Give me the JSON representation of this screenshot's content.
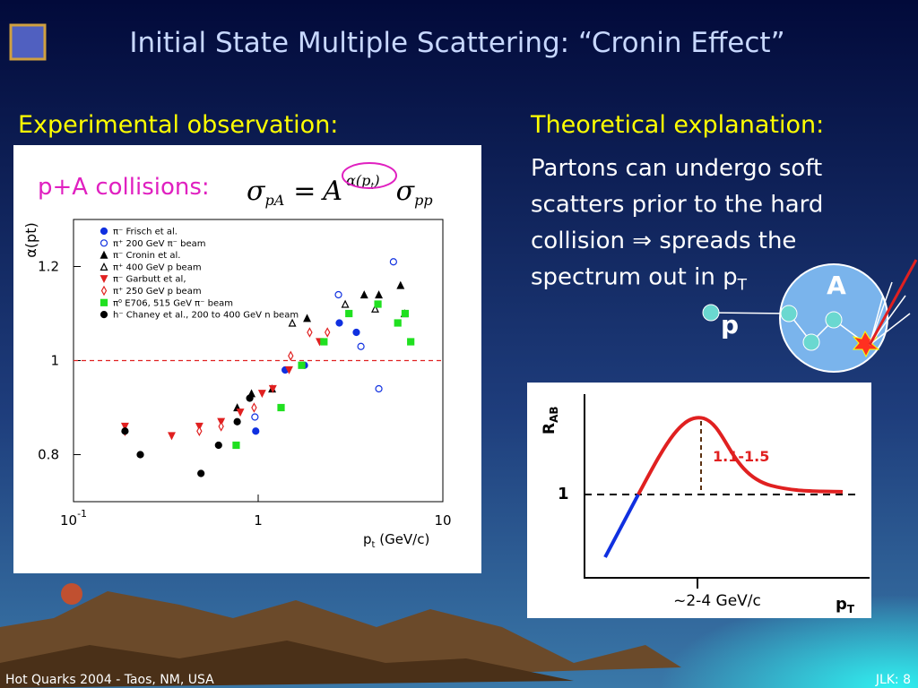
{
  "title": "Initial State Multiple Scattering: “Cronin Effect”",
  "left_heading": "Experimental observation:",
  "right_heading": "Theoretical explanation:",
  "formula": {
    "label": "p+A collisions:",
    "lhs": "σ",
    "lhs_sub": "pA",
    "eq": "=",
    "base": "A",
    "exp_open": "α(",
    "exp_p": "p",
    "exp_sub": "t",
    "exp_close": ")",
    "rhs": "σ",
    "rhs_sub": "pp"
  },
  "explanation": {
    "lines": [
      "Partons can undergo soft",
      "scatters prior to the hard",
      "collision ⇒ spreads the",
      "spectrum out in p"
    ],
    "last_sub": "T"
  },
  "diagram": {
    "nucleus_label": "A",
    "projectile_label": "p"
  },
  "schematic": {
    "ylabel": "R",
    "ylabel_sub": "AB",
    "xlabel": "p",
    "xlabel_sub": "T",
    "one_label": "1",
    "x_label": "~2-4 GeV/c",
    "annotation": "1.1-1.5"
  },
  "footer": {
    "left": "Hot Quarks 2004 - Taos, NM, USA",
    "right": "JLK: 8"
  },
  "chart_data": {
    "type": "scatter",
    "xlog": true,
    "ylabel": "α(pt)",
    "xlabel": "p",
    "xlabel_sub": "t",
    "xlabel_rest": " (GeV/c)",
    "xlim": [
      0.1,
      10
    ],
    "ylim": [
      0.7,
      1.3
    ],
    "xticks": [
      {
        "value": 0.1,
        "label": "10",
        "superscript": "-1"
      },
      1,
      10
    ],
    "yticks": [
      0.8,
      1,
      1.2
    ],
    "reference_line": 1,
    "reference_color": "#e02020",
    "series": [
      {
        "name": "π⁻ Frisch et al.",
        "color": "#1030e0",
        "marker": "circle",
        "x": [
          0.97,
          1.4,
          1.78,
          2.75,
          3.4
        ],
        "values": [
          0.85,
          0.98,
          0.99,
          1.08,
          1.06
        ]
      },
      {
        "name": "π⁺      200 GeV π⁻ beam",
        "color": "#1030e0",
        "marker": "open-circle",
        "x": [
          0.96,
          2.72,
          3.6,
          4.5,
          5.4
        ],
        "values": [
          0.88,
          1.14,
          1.03,
          0.94,
          1.21
        ]
      },
      {
        "name": "π⁻ Cronin et al.",
        "color": "#000000",
        "marker": "triangle",
        "x": [
          0.77,
          0.92,
          1.19,
          1.84,
          3.75,
          4.5,
          5.9
        ],
        "values": [
          0.9,
          0.93,
          0.94,
          1.09,
          1.14,
          1.14,
          1.16
        ]
      },
      {
        "name": "π⁺      400 GeV p beam",
        "color": "#000000",
        "marker": "open-triangle",
        "x": [
          1.53,
          2.96,
          4.3,
          6.2
        ],
        "values": [
          1.08,
          1.12,
          1.11,
          1.1
        ]
      },
      {
        "name": "π⁻ Garbutt et al,",
        "color": "#e02020",
        "marker": "down-triangle",
        "x": [
          0.19,
          0.34,
          0.48,
          0.63,
          0.8,
          1.05,
          1.2,
          1.47,
          2.15
        ],
        "values": [
          0.86,
          0.84,
          0.86,
          0.87,
          0.89,
          0.93,
          0.94,
          0.98,
          1.04
        ]
      },
      {
        "name": "π⁺      250 GeV p beam",
        "color": "#e02020",
        "marker": "open-diamond",
        "x": [
          0.19,
          0.48,
          0.63,
          0.95,
          1.5,
          1.9,
          2.37
        ],
        "values": [
          0.85,
          0.85,
          0.86,
          0.9,
          1.01,
          1.06,
          1.06
        ]
      },
      {
        "name": "π⁰ E706, 515 GeV π⁻ beam",
        "color": "#20e020",
        "marker": "square",
        "x": [
          0.76,
          1.33,
          1.72,
          2.27,
          3.1,
          4.45,
          5.7,
          6.25,
          6.7
        ],
        "values": [
          0.82,
          0.9,
          0.99,
          1.04,
          1.1,
          1.12,
          1.08,
          1.1,
          1.04
        ]
      },
      {
        "name": "h⁻ Chaney et al., 200 to 400 GeV n beam",
        "color": "#000000",
        "marker": "circle",
        "x": [
          0.19,
          0.23,
          0.49,
          0.61,
          0.77,
          0.9
        ],
        "values": [
          0.85,
          0.8,
          0.76,
          0.82,
          0.87,
          0.92
        ]
      }
    ]
  }
}
